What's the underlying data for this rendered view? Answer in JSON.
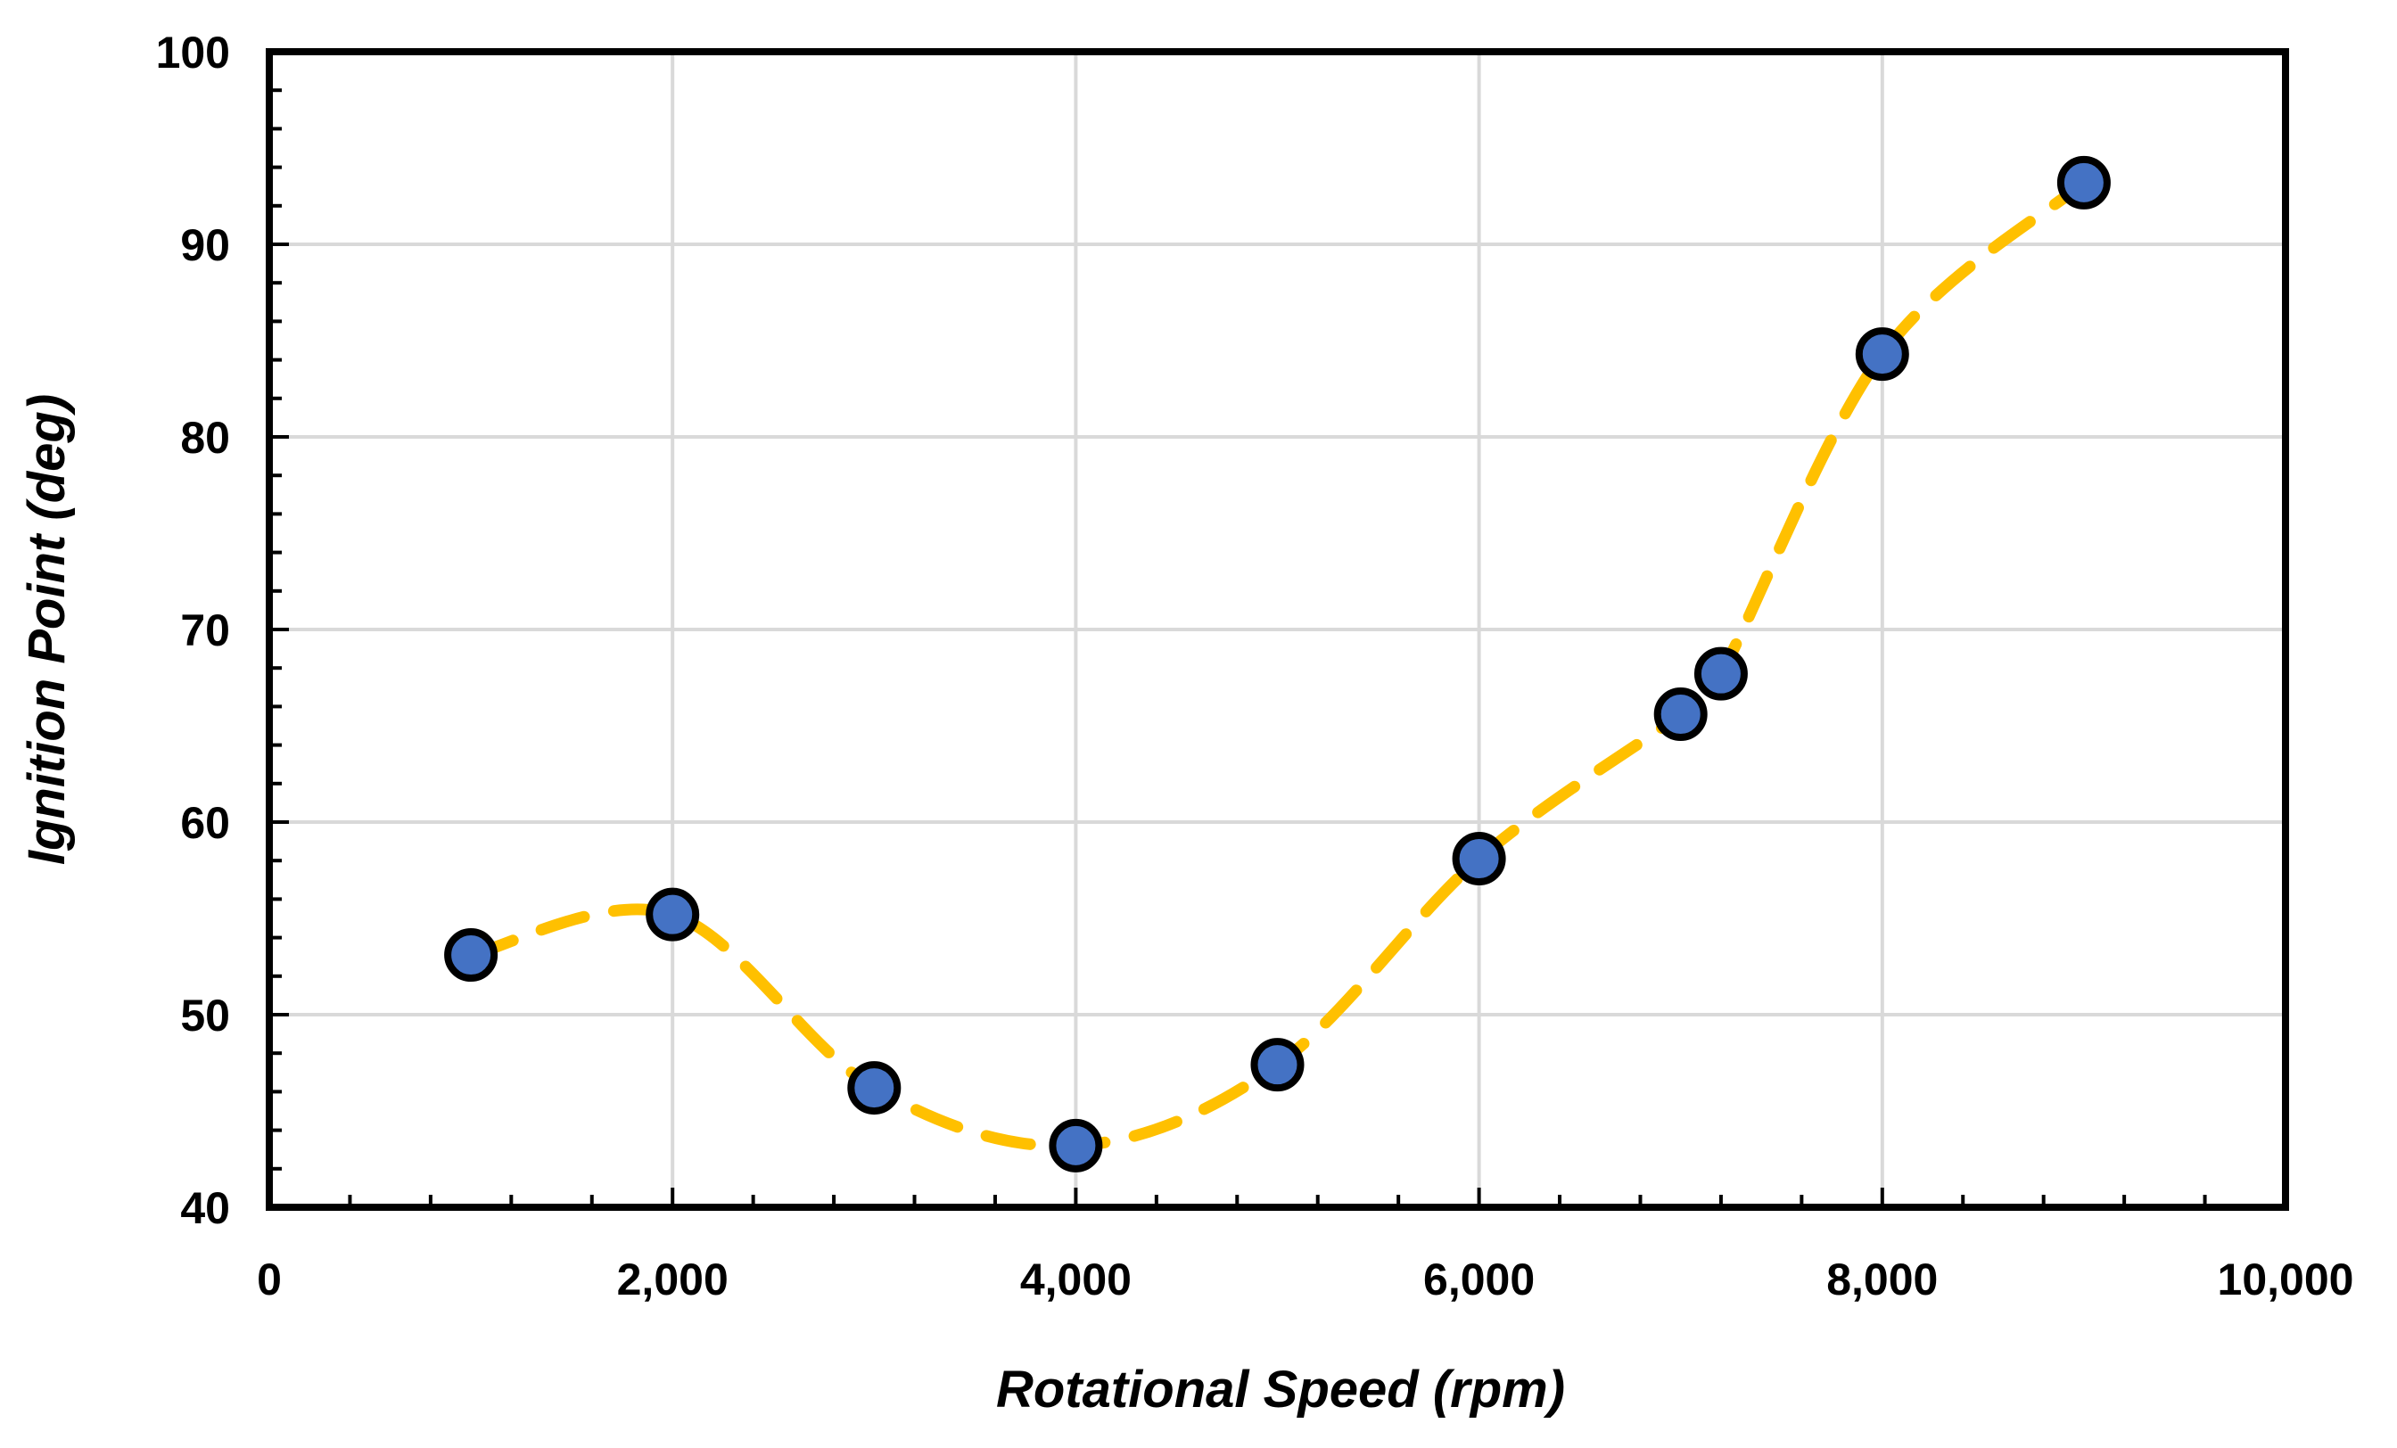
{
  "chart_data": {
    "type": "scatter",
    "title": "",
    "xlabel": "Rotational Speed (rpm)",
    "ylabel": "Ignition Point (deg)",
    "xlim": [
      0,
      10000
    ],
    "ylim": [
      40,
      100
    ],
    "x_ticks": [
      0,
      2000,
      4000,
      6000,
      8000,
      10000
    ],
    "x_tick_labels": [
      "0",
      "2,000",
      "4,000",
      "6,000",
      "8,000",
      "10,000"
    ],
    "y_ticks": [
      40,
      50,
      60,
      70,
      80,
      90,
      100
    ],
    "y_tick_labels": [
      "40",
      "50",
      "60",
      "70",
      "80",
      "90",
      "100"
    ],
    "grid": true,
    "series": [
      {
        "name": "Ignition Point",
        "marker_color": "#4472C4",
        "marker_edge_color": "#000000",
        "line_color": "#FFC000",
        "line_style": "dashed-smooth",
        "x": [
          1000,
          2000,
          3000,
          4000,
          5000,
          6000,
          7000,
          7200,
          8000,
          9000
        ],
        "y": [
          53.1,
          55.2,
          46.2,
          43.2,
          47.4,
          58.1,
          65.6,
          67.7,
          84.3,
          93.2
        ]
      }
    ]
  },
  "colors": {
    "grid": "#D9D9D9",
    "axis": "#000000",
    "background": "#FFFFFF"
  }
}
